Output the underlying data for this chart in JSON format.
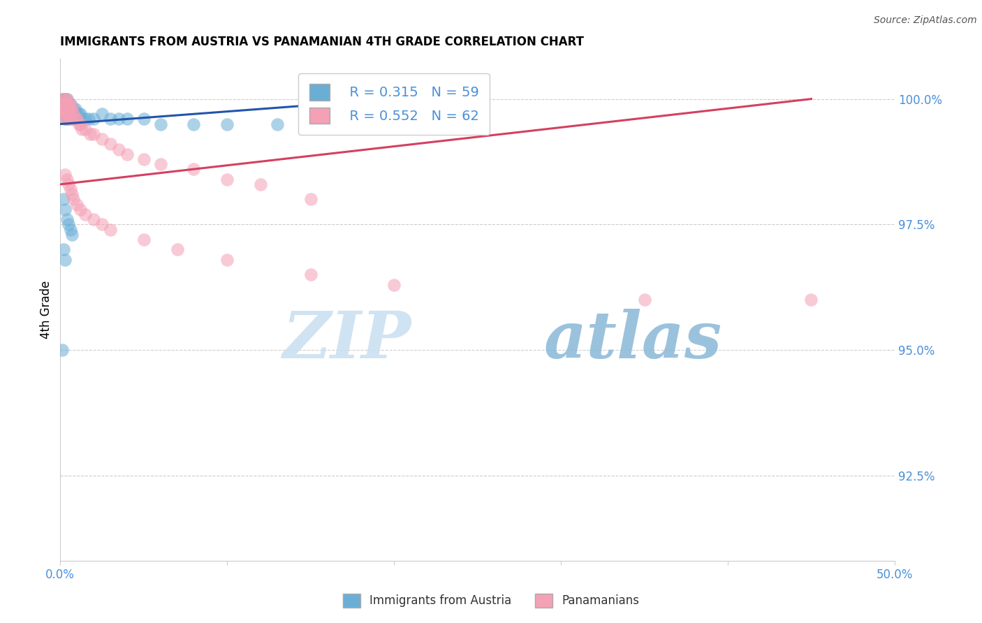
{
  "title": "IMMIGRANTS FROM AUSTRIA VS PANAMANIAN 4TH GRADE CORRELATION CHART",
  "source": "Source: ZipAtlas.com",
  "ylabel": "4th Grade",
  "ylabel_right_ticks": [
    "100.0%",
    "97.5%",
    "95.0%",
    "92.5%"
  ],
  "ylabel_right_values": [
    1.0,
    0.975,
    0.95,
    0.925
  ],
  "xlim": [
    0.0,
    0.5
  ],
  "ylim": [
    0.908,
    1.008
  ],
  "legend_r1": "R = 0.315",
  "legend_n1": "N = 59",
  "legend_r2": "R = 0.552",
  "legend_n2": "N = 62",
  "blue_color": "#6aaed6",
  "pink_color": "#f4a0b5",
  "blue_line_color": "#2255aa",
  "pink_line_color": "#d44060",
  "watermark_zip": "ZIP",
  "watermark_atlas": "atlas",
  "blue_x": [
    0.001,
    0.001,
    0.001,
    0.002,
    0.002,
    0.002,
    0.002,
    0.002,
    0.003,
    0.003,
    0.003,
    0.003,
    0.003,
    0.003,
    0.003,
    0.004,
    0.004,
    0.004,
    0.004,
    0.004,
    0.005,
    0.005,
    0.005,
    0.005,
    0.006,
    0.006,
    0.006,
    0.007,
    0.007,
    0.008,
    0.008,
    0.009,
    0.009,
    0.01,
    0.011,
    0.012,
    0.013,
    0.015,
    0.017,
    0.02,
    0.025,
    0.03,
    0.035,
    0.04,
    0.05,
    0.06,
    0.08,
    0.1,
    0.13,
    0.16,
    0.002,
    0.003,
    0.004,
    0.005,
    0.006,
    0.007,
    0.002,
    0.003,
    0.001
  ],
  "blue_y": [
    0.999,
    1.0,
    0.998,
    1.0,
    0.999,
    0.999,
    0.998,
    0.997,
    1.0,
    1.0,
    0.999,
    0.999,
    0.998,
    0.997,
    0.996,
    1.0,
    0.999,
    0.998,
    0.997,
    0.996,
    0.999,
    0.998,
    0.997,
    0.996,
    0.999,
    0.998,
    0.997,
    0.998,
    0.997,
    0.998,
    0.996,
    0.998,
    0.996,
    0.997,
    0.997,
    0.997,
    0.996,
    0.996,
    0.996,
    0.996,
    0.997,
    0.996,
    0.996,
    0.996,
    0.996,
    0.995,
    0.995,
    0.995,
    0.995,
    0.995,
    0.98,
    0.978,
    0.976,
    0.975,
    0.974,
    0.973,
    0.97,
    0.968,
    0.95
  ],
  "pink_x": [
    0.001,
    0.001,
    0.002,
    0.002,
    0.002,
    0.002,
    0.003,
    0.003,
    0.003,
    0.003,
    0.003,
    0.004,
    0.004,
    0.004,
    0.004,
    0.005,
    0.005,
    0.005,
    0.005,
    0.006,
    0.006,
    0.006,
    0.007,
    0.007,
    0.008,
    0.009,
    0.01,
    0.011,
    0.012,
    0.013,
    0.015,
    0.018,
    0.02,
    0.025,
    0.03,
    0.035,
    0.04,
    0.05,
    0.06,
    0.08,
    0.1,
    0.12,
    0.15,
    0.003,
    0.004,
    0.005,
    0.006,
    0.007,
    0.008,
    0.01,
    0.012,
    0.015,
    0.02,
    0.025,
    0.03,
    0.05,
    0.07,
    0.1,
    0.15,
    0.2,
    0.35,
    0.45
  ],
  "pink_y": [
    0.999,
    0.998,
    1.0,
    0.999,
    0.998,
    0.997,
    1.0,
    0.999,
    0.998,
    0.997,
    0.996,
    1.0,
    0.999,
    0.998,
    0.997,
    0.999,
    0.998,
    0.997,
    0.996,
    0.999,
    0.998,
    0.996,
    0.998,
    0.996,
    0.997,
    0.996,
    0.996,
    0.995,
    0.995,
    0.994,
    0.994,
    0.993,
    0.993,
    0.992,
    0.991,
    0.99,
    0.989,
    0.988,
    0.987,
    0.986,
    0.984,
    0.983,
    0.98,
    0.985,
    0.984,
    0.983,
    0.982,
    0.981,
    0.98,
    0.979,
    0.978,
    0.977,
    0.976,
    0.975,
    0.974,
    0.972,
    0.97,
    0.968,
    0.965,
    0.963,
    0.96,
    0.96
  ],
  "blue_trend_x": [
    0.0,
    0.16
  ],
  "blue_trend_y": [
    0.995,
    0.999
  ],
  "pink_trend_x": [
    0.0,
    0.45
  ],
  "pink_trend_y": [
    0.983,
    1.0
  ]
}
